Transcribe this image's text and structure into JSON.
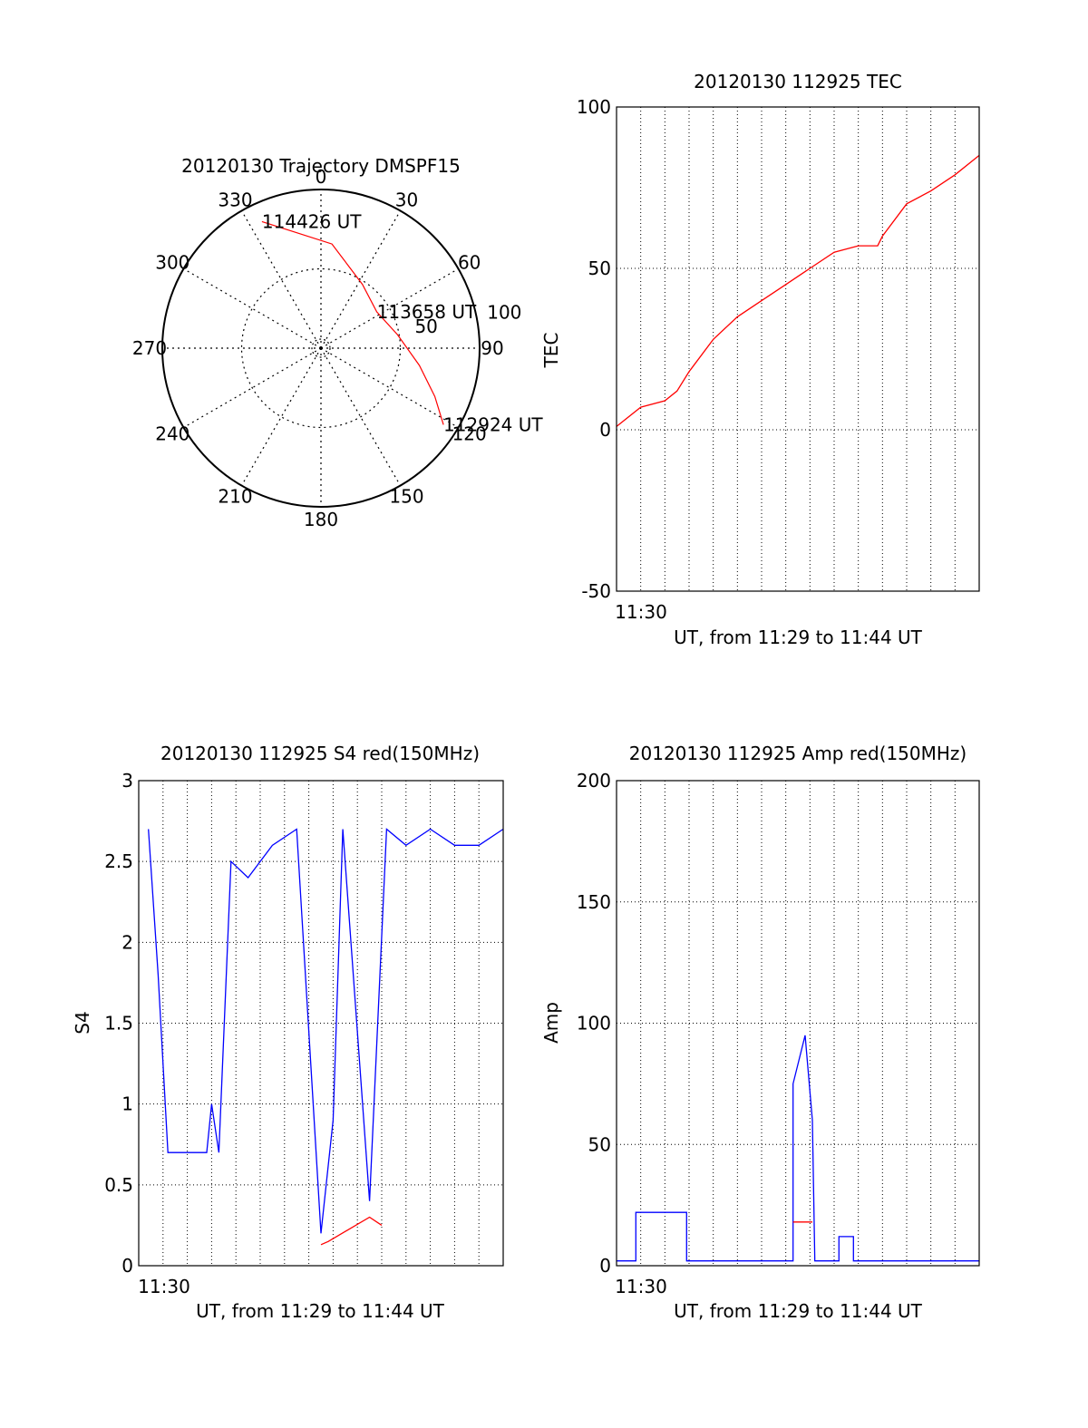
{
  "chart_data": [
    {
      "type": "polar-trajectory",
      "title": "20120130 Trajectory DMSPF15",
      "azimuth_labels": [
        "0",
        "30",
        "60",
        "90",
        "120",
        "150",
        "180",
        "210",
        "240",
        "270",
        "300",
        "330"
      ],
      "radial_labels": [
        "50",
        "100"
      ],
      "trajectory": {
        "color": "#ff0000",
        "points": [
          {
            "az": 122,
            "r": 91
          },
          {
            "az": 113,
            "r": 78
          },
          {
            "az": 100,
            "r": 63
          },
          {
            "az": 80,
            "r": 49
          },
          {
            "az": 57,
            "r": 42
          },
          {
            "az": 33,
            "r": 48
          },
          {
            "az": 6,
            "r": 66
          },
          {
            "az": 335,
            "r": 88
          }
        ]
      },
      "annotations": [
        {
          "text": "114426 UT",
          "az": 335,
          "r": 88
        },
        {
          "text": "113658 UT",
          "az": 57,
          "r": 42
        },
        {
          "text": "112924 UT",
          "az": 122,
          "r": 91
        }
      ]
    },
    {
      "type": "line",
      "title": "20120130 112925 TEC",
      "ylabel": "TEC",
      "xlabel": "UT, from 11:29 to 11:44 UT",
      "xtick_label": "11:30",
      "ylim": [
        -50,
        100
      ],
      "yticks": [
        "-50",
        "0",
        "50",
        "100"
      ],
      "xlim_minutes": [
        0,
        15
      ],
      "grid": true,
      "series": [
        {
          "color": "#ff0000",
          "points": [
            [
              0,
              1
            ],
            [
              1,
              7
            ],
            [
              2,
              9
            ],
            [
              2.5,
              12
            ],
            [
              3,
              18
            ],
            [
              4,
              28
            ],
            [
              5,
              35
            ],
            [
              6,
              40
            ],
            [
              7,
              45
            ],
            [
              8,
              50
            ],
            [
              9,
              55
            ],
            [
              10,
              57
            ],
            [
              10.8,
              57
            ],
            [
              11,
              60
            ],
            [
              12,
              70
            ],
            [
              13,
              74
            ],
            [
              14,
              79
            ],
            [
              15,
              85
            ]
          ]
        }
      ]
    },
    {
      "type": "line",
      "title": "20120130 112925 S4 red(150MHz)",
      "ylabel": "S4",
      "xlabel": "UT, from 11:29 to 11:44 UT",
      "xtick_label": "11:30",
      "ylim": [
        0,
        3
      ],
      "yticks": [
        "0",
        "0.5",
        "1",
        "1.5",
        "2",
        "2.5",
        "3"
      ],
      "xlim_minutes": [
        0,
        15
      ],
      "grid": true,
      "series": [
        {
          "color": "#0000ff",
          "points": [
            [
              0.4,
              2.7
            ],
            [
              0.8,
              1.8
            ],
            [
              1.2,
              0.7
            ],
            [
              2,
              0.7
            ],
            [
              2.8,
              0.7
            ],
            [
              3,
              1.0
            ],
            [
              3.3,
              0.7
            ],
            [
              3.8,
              2.5
            ],
            [
              4.5,
              2.4
            ],
            [
              5.5,
              2.6
            ],
            [
              6.5,
              2.7
            ],
            [
              7.5,
              0.2
            ],
            [
              8,
              0.9
            ],
            [
              8.4,
              2.7
            ],
            [
              9.5,
              0.4
            ],
            [
              10.2,
              2.7
            ],
            [
              11,
              2.6
            ],
            [
              12,
              2.7
            ],
            [
              13,
              2.6
            ],
            [
              14,
              2.6
            ],
            [
              15,
              2.7
            ]
          ]
        },
        {
          "color": "#ff0000",
          "points": [
            [
              7.5,
              0.13
            ],
            [
              7.8,
              0.15
            ],
            [
              9.5,
              0.3
            ],
            [
              10.0,
              0.25
            ]
          ]
        }
      ]
    },
    {
      "type": "line",
      "title": "20120130 112925 Amp red(150MHz)",
      "ylabel": "Amp",
      "xlabel": "UT, from 11:29 to 11:44 UT",
      "xtick_label": "11:30",
      "ylim": [
        0,
        200
      ],
      "yticks": [
        "0",
        "50",
        "100",
        "150",
        "200"
      ],
      "xlim_minutes": [
        0,
        15
      ],
      "grid": true,
      "series": [
        {
          "color": "#0000ff",
          "points": [
            [
              0,
              2
            ],
            [
              0.8,
              2
            ],
            [
              0.8,
              22
            ],
            [
              2.9,
              22
            ],
            [
              2.9,
              2
            ],
            [
              7.3,
              2
            ],
            [
              7.3,
              75
            ],
            [
              7.8,
              95
            ],
            [
              8.1,
              60
            ],
            [
              8.2,
              2
            ],
            [
              9.2,
              2
            ],
            [
              9.2,
              12
            ],
            [
              9.8,
              12
            ],
            [
              9.8,
              2
            ],
            [
              15,
              2
            ]
          ]
        },
        {
          "color": "#ff0000",
          "points": [
            [
              7.3,
              18
            ],
            [
              8.1,
              18
            ]
          ]
        }
      ]
    }
  ]
}
